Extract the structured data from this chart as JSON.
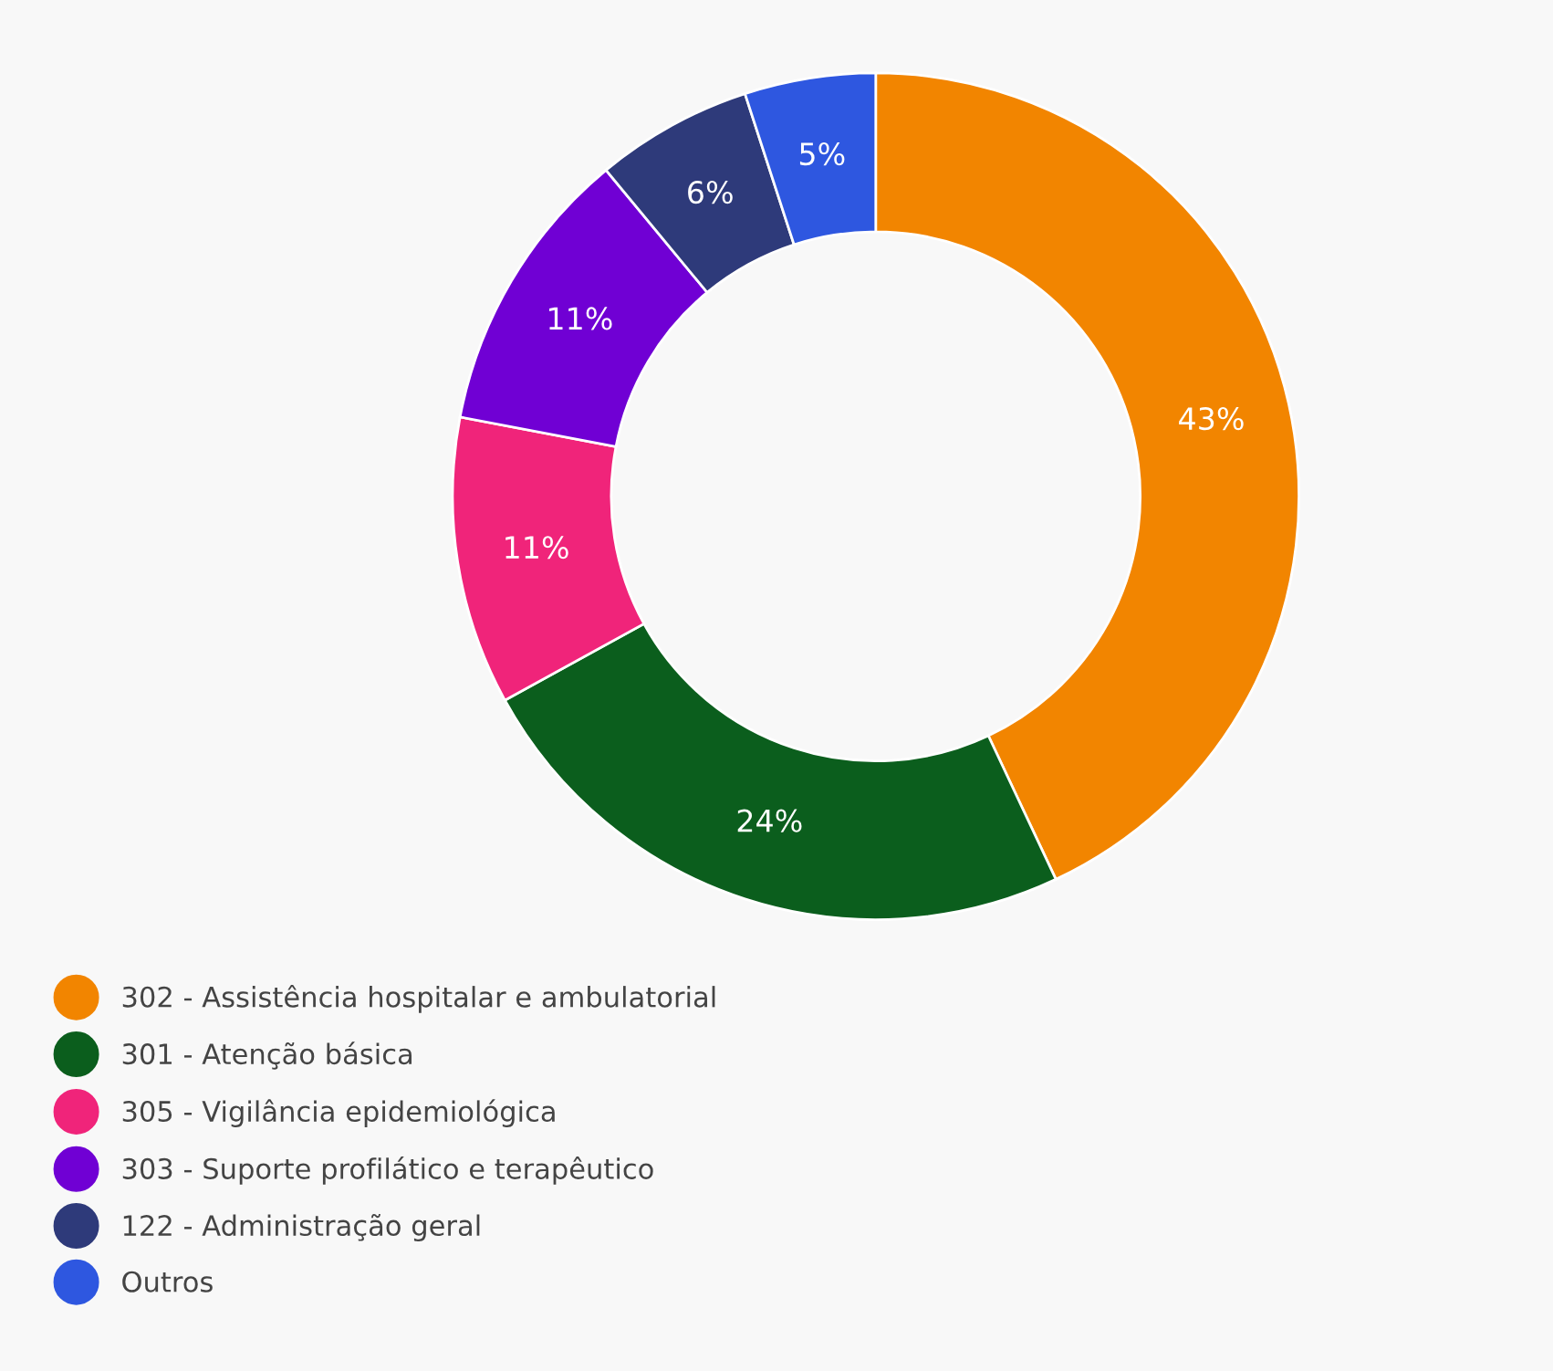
{
  "chart_data": {
    "type": "donut",
    "categories": [
      "302 - Assistência hospitalar e ambulatorial",
      "301 - Atenção básica",
      "305 - Vigilância epidemiológica",
      "303 - Suporte profilático e terapêutico",
      "122 - Administração geral",
      "Outros"
    ],
    "values": [
      43,
      24,
      11,
      11,
      6,
      5
    ],
    "colors": [
      "#f28500",
      "#0b5e1d",
      "#f0247a",
      "#7000d4",
      "#2e3a7a",
      "#2e57e0"
    ],
    "value_labels": [
      "43%",
      "24%",
      "11%",
      "11%",
      "6%",
      "5%"
    ],
    "legend": "bottom left"
  }
}
